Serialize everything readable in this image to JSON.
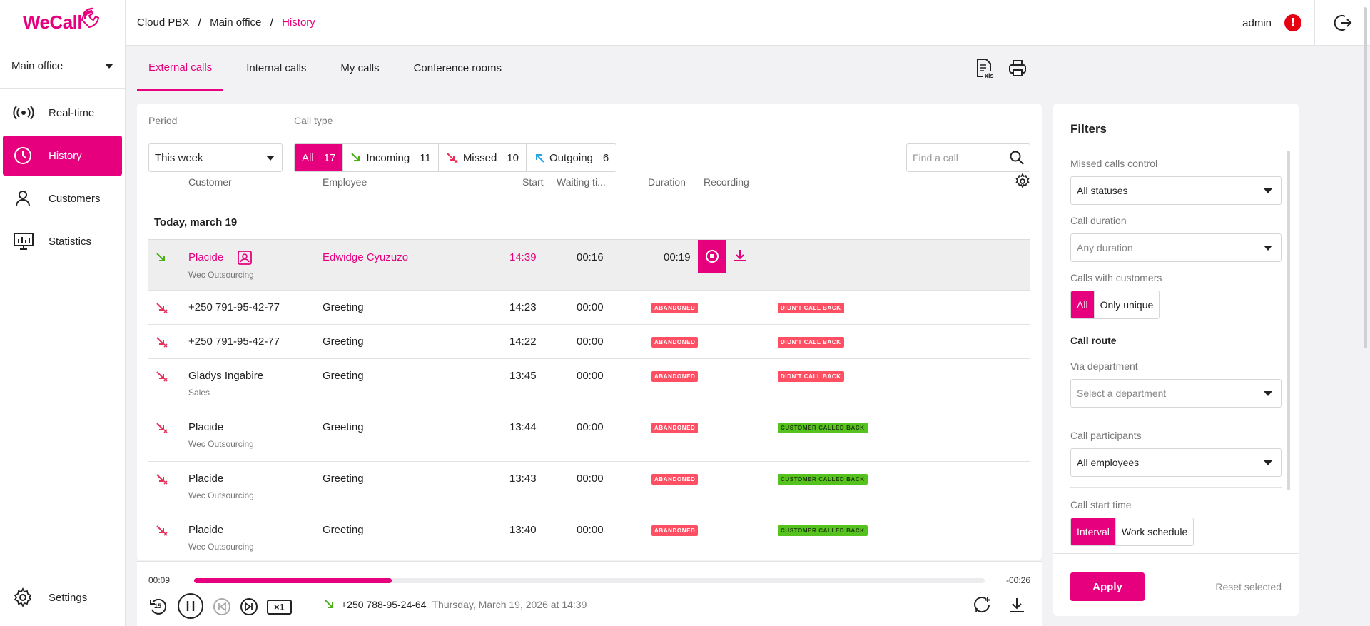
{
  "app": {
    "logo": "WeCall",
    "office": "Main office"
  },
  "sidebar": {
    "items": [
      {
        "label": "Real-time",
        "icon": "broadcast-icon"
      },
      {
        "label": "History",
        "icon": "clock-icon"
      },
      {
        "label": "Customers",
        "icon": "person-icon"
      },
      {
        "label": "Statistics",
        "icon": "monitor-chart-icon"
      }
    ],
    "settings": "Settings"
  },
  "breadcrumb": [
    "Cloud PBX",
    "Main office",
    "History"
  ],
  "user": {
    "name": "admin",
    "alert": "!"
  },
  "tabs": [
    "External calls",
    "Internal calls",
    "My calls",
    "Conference rooms"
  ],
  "filters": {
    "period_label": "Period",
    "period_value": "This week",
    "calltype_label": "Call type",
    "calltypes": [
      {
        "label": "All",
        "count": "17"
      },
      {
        "label": "Incoming",
        "count": "11"
      },
      {
        "label": "Missed",
        "count": "10"
      },
      {
        "label": "Outgoing",
        "count": "6"
      }
    ],
    "search_placeholder": "Find a call"
  },
  "table": {
    "headers": [
      "Customer",
      "Employee",
      "Start",
      "Waiting ti...",
      "Duration",
      "Recording"
    ],
    "day_label": "Today, march 19",
    "rows": [
      {
        "customer": "Placide",
        "sub": "Wec Outsourcing",
        "employee": "Edwidge Cyuzuzo",
        "start": "14:39",
        "waiting": "00:16",
        "duration": "00:19"
      },
      {
        "customer": "+250 791-95-42-77",
        "sub": "",
        "employee": "Greeting",
        "start": "14:23",
        "waiting": "00:00",
        "status": "ABANDONED",
        "callback": "DIDN'T CALL BACK"
      },
      {
        "customer": "+250 791-95-42-77",
        "sub": "",
        "employee": "Greeting",
        "start": "14:22",
        "waiting": "00:00",
        "status": "ABANDONED",
        "callback": "DIDN'T CALL BACK"
      },
      {
        "customer": "Gladys Ingabire",
        "sub": "Sales",
        "employee": "Greeting",
        "start": "13:45",
        "waiting": "00:00",
        "status": "ABANDONED",
        "callback": "DIDN'T CALL BACK"
      },
      {
        "customer": "Placide",
        "sub": "Wec Outsourcing",
        "employee": "Greeting",
        "start": "13:44",
        "waiting": "00:00",
        "status": "ABANDONED",
        "callback": "CUSTOMER CALLED BACK"
      },
      {
        "customer": "Placide",
        "sub": "Wec Outsourcing",
        "employee": "Greeting",
        "start": "13:43",
        "waiting": "00:00",
        "status": "ABANDONED",
        "callback": "CUSTOMER CALLED BACK"
      },
      {
        "customer": "Placide",
        "sub": "Wec Outsourcing",
        "employee": "Greeting",
        "start": "13:40",
        "waiting": "00:00",
        "status": "ABANDONED",
        "callback": "CUSTOMER CALLED BACK"
      }
    ]
  },
  "player": {
    "elapsed": "00:09",
    "remaining": "-00:26",
    "progress": 0.25,
    "speed": "×1",
    "skip_back": "15",
    "number": "+250 788-95-24-64",
    "date": "Thursday, March 19, 2026 at 14:39"
  },
  "filter_panel": {
    "title": "Filters",
    "missed_label": "Missed calls control",
    "missed_value": "All statuses",
    "duration_label": "Call duration",
    "duration_placeholder": "Any duration",
    "customers_label": "Calls with customers",
    "customers_opts": [
      "All",
      "Only unique"
    ],
    "route_label": "Call route",
    "department_label": "Via department",
    "department_placeholder": "Select a department",
    "participants_label": "Call participants",
    "participants_value": "All employees",
    "start_label": "Call start time",
    "start_opts": [
      "Interval",
      "Work schedule"
    ],
    "apply": "Apply",
    "reset": "Reset selected"
  },
  "colors": {
    "accent": "#e6007e",
    "abandoned": "#ff4f63",
    "called_back": "#56c21d",
    "incoming": "#4caf1a",
    "missed": "#e6325a",
    "outgoing": "#2aa4e6"
  }
}
